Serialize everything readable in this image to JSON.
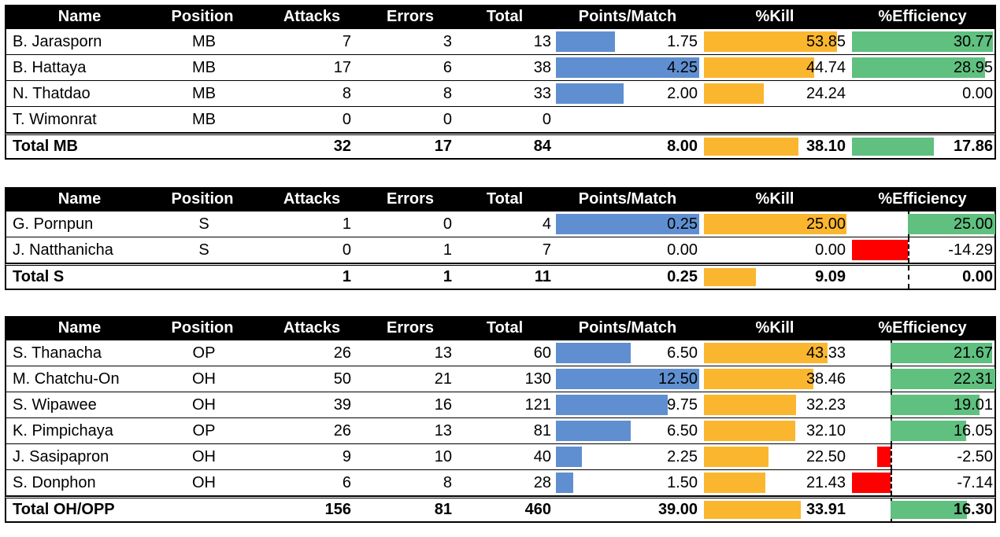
{
  "headers": {
    "name": "Name",
    "position": "Position",
    "attacks": "Attacks",
    "errors": "Errors",
    "total": "Total",
    "ppm": "Points/Match",
    "kill": "%Kill",
    "eff": "%Efficiency"
  },
  "colors": {
    "ppm_bar": "#5f8fd0",
    "kill_bar": "#fbb62f",
    "eff_positive": "#5fc07f",
    "eff_negative": "#ff0000"
  },
  "sections": [
    {
      "rows": [
        {
          "name": "B. Jarasporn",
          "position": "MB",
          "attacks": "7",
          "errors": "3",
          "total": "13",
          "ppm": "1.75",
          "kill": "53.85",
          "eff": "30.77"
        },
        {
          "name": "B. Hattaya",
          "position": "MB",
          "attacks": "17",
          "errors": "6",
          "total": "38",
          "ppm": "4.25",
          "kill": "44.74",
          "eff": "28.95"
        },
        {
          "name": "N. Thatdao",
          "position": "MB",
          "attacks": "8",
          "errors": "8",
          "total": "33",
          "ppm": "2.00",
          "kill": "24.24",
          "eff": "0.00"
        },
        {
          "name": "T. Wimonrat",
          "position": "MB",
          "attacks": "0",
          "errors": "0",
          "total": "0",
          "ppm": "",
          "kill": "",
          "eff": ""
        }
      ],
      "total": {
        "name": "Total MB",
        "attacks": "32",
        "errors": "17",
        "total": "84",
        "ppm": "8.00",
        "kill": "38.10",
        "eff": "17.86"
      }
    },
    {
      "rows": [
        {
          "name": "G. Pornpun",
          "position": "S",
          "attacks": "1",
          "errors": "0",
          "total": "4",
          "ppm": "0.25",
          "kill": "25.00",
          "eff": "25.00"
        },
        {
          "name": "J. Natthanicha",
          "position": "S",
          "attacks": "0",
          "errors": "1",
          "total": "7",
          "ppm": "0.00",
          "kill": "0.00",
          "eff": "-14.29"
        }
      ],
      "total": {
        "name": "Total S",
        "attacks": "1",
        "errors": "1",
        "total": "11",
        "ppm": "0.25",
        "kill": "9.09",
        "eff": "0.00"
      }
    },
    {
      "rows": [
        {
          "name": "S. Thanacha",
          "position": "OP",
          "attacks": "26",
          "errors": "13",
          "total": "60",
          "ppm": "6.50",
          "kill": "43.33",
          "eff": "21.67"
        },
        {
          "name": "M. Chatchu-On",
          "position": "OH",
          "attacks": "50",
          "errors": "21",
          "total": "130",
          "ppm": "12.50",
          "kill": "38.46",
          "eff": "22.31"
        },
        {
          "name": "S. Wipawee",
          "position": "OH",
          "attacks": "39",
          "errors": "16",
          "total": "121",
          "ppm": "9.75",
          "kill": "32.23",
          "eff": "19.01"
        },
        {
          "name": "K. Pimpichaya",
          "position": "OP",
          "attacks": "26",
          "errors": "13",
          "total": "81",
          "ppm": "6.50",
          "kill": "32.10",
          "eff": "16.05"
        },
        {
          "name": "J. Sasipapron",
          "position": "OH",
          "attacks": "9",
          "errors": "10",
          "total": "40",
          "ppm": "2.25",
          "kill": "22.50",
          "eff": "-2.50"
        },
        {
          "name": "S. Donphon",
          "position": "OH",
          "attacks": "6",
          "errors": "8",
          "total": "28",
          "ppm": "1.50",
          "kill": "21.43",
          "eff": "-7.14"
        }
      ],
      "total": {
        "name": "Total OH/OPP",
        "attacks": "156",
        "errors": "81",
        "total": "460",
        "ppm": "39.00",
        "kill": "33.91",
        "eff": "16.30"
      }
    }
  ]
}
